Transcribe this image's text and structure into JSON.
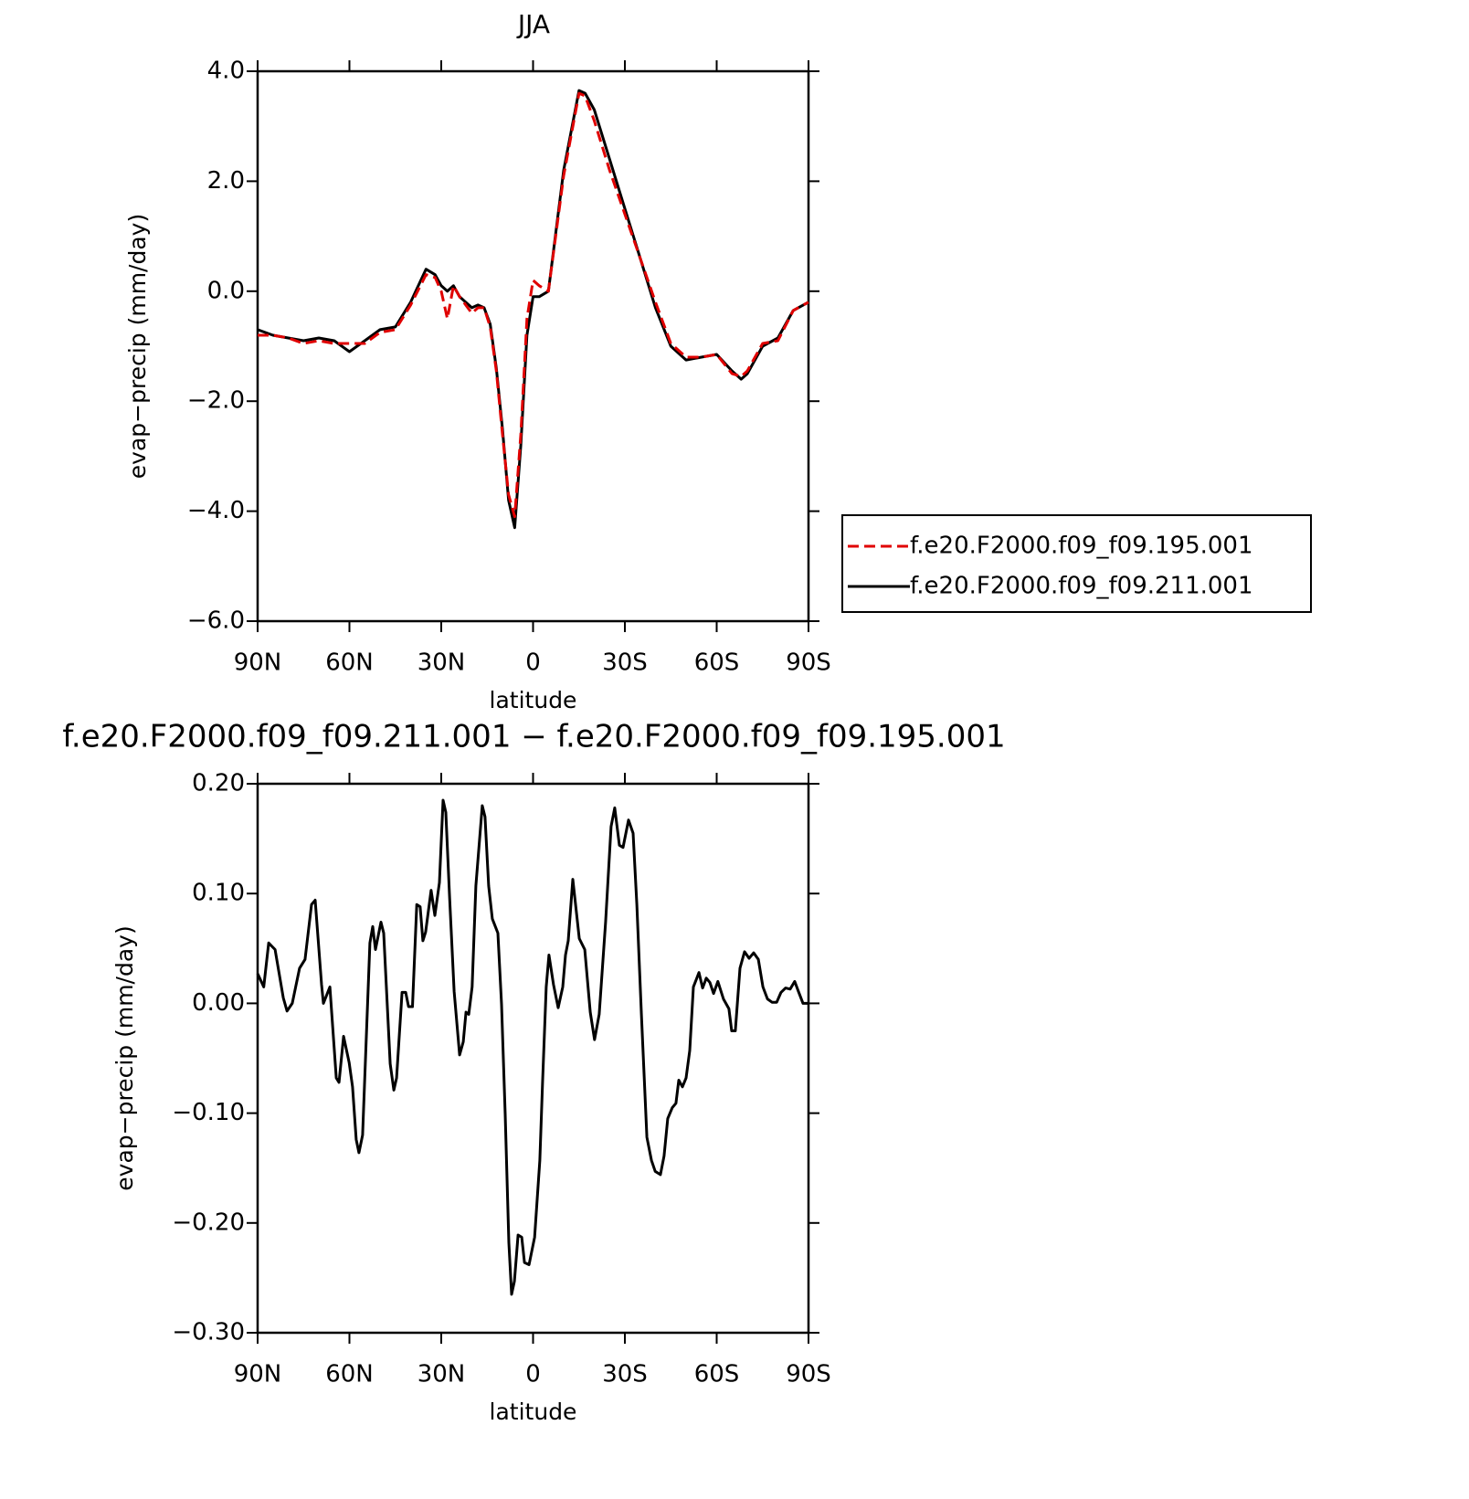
{
  "chart_data": [
    {
      "type": "line",
      "title": "JJA",
      "xlabel": "latitude",
      "ylabel": "evap−precip (mm/day)",
      "xlim": [
        90,
        -90
      ],
      "xticks": [
        {
          "value": 90,
          "label": "90N"
        },
        {
          "value": 60,
          "label": "60N"
        },
        {
          "value": 30,
          "label": "30N"
        },
        0,
        {
          "value": -30,
          "label": "30S"
        },
        {
          "value": -60,
          "label": "60S"
        },
        {
          "value": -90,
          "label": "90S"
        }
      ],
      "ylim": [
        -6,
        4
      ],
      "yticks": [
        {
          "value": -6,
          "label": "−6.0"
        },
        {
          "value": -4,
          "label": "−4.0"
        },
        {
          "value": -2,
          "label": "−2.0"
        },
        {
          "value": 0,
          "label": "0.0"
        },
        {
          "value": 2,
          "label": "2.0"
        },
        {
          "value": 4,
          "label": "4.0"
        }
      ],
      "legend": "right",
      "x": [
        90,
        85,
        80,
        75,
        70,
        65,
        60,
        55,
        50,
        45,
        40,
        35,
        32,
        30,
        28,
        26,
        24,
        20,
        18,
        16,
        14,
        12,
        10,
        8,
        6,
        4,
        2,
        0,
        -2,
        -5,
        -10,
        -15,
        -17,
        -20,
        -25,
        -30,
        -35,
        -40,
        -45,
        -50,
        -55,
        -60,
        -65,
        -68,
        -70,
        -75,
        -80,
        -85,
        -90
      ],
      "series": [
        {
          "name": "f.e20.F2000.f09_f09.195.001",
          "color": "#e00000",
          "style": "dashed",
          "values": [
            -0.8,
            -0.8,
            -0.85,
            -0.95,
            -0.9,
            -0.95,
            -0.95,
            -0.95,
            -0.75,
            -0.7,
            -0.25,
            0.3,
            0.25,
            0.0,
            -0.5,
            0.1,
            -0.1,
            -0.4,
            -0.3,
            -0.3,
            -0.65,
            -1.45,
            -2.6,
            -3.7,
            -4.1,
            -2.6,
            -0.5,
            0.2,
            0.1,
            0.0,
            2.1,
            3.6,
            3.55,
            3.1,
            2.2,
            1.4,
            0.6,
            -0.2,
            -0.95,
            -1.2,
            -1.2,
            -1.15,
            -1.5,
            -1.55,
            -1.45,
            -0.95,
            -0.9,
            -0.35,
            -0.2
          ]
        },
        {
          "name": "f.e20.F2000.f09_f09.211.001",
          "color": "#000000",
          "style": "solid",
          "values": [
            -0.7,
            -0.8,
            -0.85,
            -0.9,
            -0.85,
            -0.9,
            -1.1,
            -0.9,
            -0.7,
            -0.65,
            -0.2,
            0.4,
            0.3,
            0.1,
            0.0,
            0.1,
            -0.1,
            -0.3,
            -0.25,
            -0.3,
            -0.6,
            -1.4,
            -2.5,
            -3.8,
            -4.3,
            -2.8,
            -0.8,
            -0.1,
            -0.1,
            0.0,
            2.2,
            3.65,
            3.6,
            3.3,
            2.4,
            1.5,
            0.6,
            -0.3,
            -1.0,
            -1.25,
            -1.2,
            -1.15,
            -1.45,
            -1.6,
            -1.5,
            -1.0,
            -0.85,
            -0.35,
            -0.2
          ]
        }
      ]
    },
    {
      "type": "line",
      "title": "f.e20.F2000.f09_f09.211.001 − f.e20.F2000.f09_f09.195.001",
      "xlabel": "latitude",
      "ylabel": "evap−precip (mm/day)",
      "xlim": [
        90,
        -90
      ],
      "xticks": [
        {
          "value": 90,
          "label": "90N"
        },
        {
          "value": 60,
          "label": "60N"
        },
        {
          "value": 30,
          "label": "30N"
        },
        0,
        {
          "value": -30,
          "label": "30S"
        },
        {
          "value": -60,
          "label": "60S"
        },
        {
          "value": -90,
          "label": "90S"
        }
      ],
      "ylim": [
        -0.3,
        0.2
      ],
      "yticks": [
        {
          "value": -0.3,
          "label": "−0.30"
        },
        {
          "value": -0.2,
          "label": "−0.20"
        },
        {
          "value": -0.1,
          "label": "−0.10"
        },
        {
          "value": 0,
          "label": "0.00"
        },
        {
          "value": 0.1,
          "label": "0.10"
        },
        {
          "value": 0.2,
          "label": "0.20"
        }
      ],
      "color": "#000000",
      "x": [
        90,
        88,
        86.4,
        84.3,
        81.6,
        80.4,
        78.7,
        76.3,
        74.5,
        72.4,
        71.2,
        69.1,
        68.5,
        66.4,
        64.3,
        63.4,
        61.9,
        60.1,
        59,
        57.8,
        56.9,
        55.7,
        53.3,
        52.4,
        51.5,
        49.7,
        48.8,
        46.7,
        45.5,
        44.6,
        42.8,
        41.6,
        40.7,
        39.4,
        38,
        36.9,
        36,
        35.1,
        33.3,
        32.1,
        30.6,
        29.4,
        28.5,
        27.3,
        25.8,
        24,
        22.8,
        21.9,
        21,
        19.9,
        18.7,
        16.6,
        15.7,
        14.5,
        13.3,
        11.5,
        10.3,
        9.1,
        7.9,
        7,
        6.1,
        4.9,
        3.7,
        2.8,
        1.3,
        -0.5,
        -2.2,
        -3.1,
        -4.3,
        -5.2,
        -6.7,
        -8.2,
        -9.7,
        -10.6,
        -11.5,
        -13,
        -15.1,
        -16.9,
        -18.7,
        -20.1,
        -21.6,
        -23.7,
        -25.5,
        -26.7,
        -28.2,
        -29.4,
        -31.2,
        -32.7,
        -33.9,
        -35.4,
        -37.2,
        -38.7,
        -39.9,
        -41.6,
        -42.8,
        -44,
        -45.5,
        -46.7,
        -47.6,
        -48.8,
        -50,
        -51.2,
        -52.4,
        -54.2,
        -55.4,
        -56.6,
        -57.8,
        -59,
        -60.4,
        -62.2,
        -64,
        -64.9,
        -66.1,
        -67.6,
        -69.1,
        -70.6,
        -72.1,
        -73.6,
        -75.1,
        -76.6,
        -78.1,
        -79.6,
        -81,
        -82.5,
        -84,
        -85.5,
        -86.7,
        -88.2,
        -89.7
      ],
      "values": [
        0.027,
        0.015,
        0.055,
        0.049,
        0.005,
        -0.007,
        0.0,
        0.032,
        0.04,
        0.09,
        0.094,
        0.017,
        0.0,
        0.015,
        -0.068,
        -0.072,
        -0.03,
        -0.054,
        -0.076,
        -0.124,
        -0.136,
        -0.12,
        0.055,
        0.07,
        0.049,
        0.074,
        0.064,
        -0.055,
        -0.079,
        -0.068,
        0.01,
        0.01,
        -0.003,
        -0.003,
        0.09,
        0.088,
        0.057,
        0.065,
        0.103,
        0.08,
        0.11,
        0.185,
        0.174,
        0.099,
        0.011,
        -0.047,
        -0.035,
        -0.008,
        -0.01,
        0.015,
        0.107,
        0.18,
        0.17,
        0.107,
        0.077,
        0.064,
        -0.001,
        -0.101,
        -0.218,
        -0.265,
        -0.253,
        -0.211,
        -0.213,
        -0.236,
        -0.238,
        -0.213,
        -0.143,
        -0.072,
        0.015,
        0.044,
        0.017,
        -0.004,
        0.015,
        0.044,
        0.057,
        0.113,
        0.059,
        0.049,
        -0.008,
        -0.033,
        -0.01,
        0.074,
        0.161,
        0.178,
        0.144,
        0.142,
        0.167,
        0.155,
        0.09,
        -0.01,
        -0.122,
        -0.143,
        -0.153,
        -0.156,
        -0.139,
        -0.105,
        -0.095,
        -0.091,
        -0.07,
        -0.076,
        -0.068,
        -0.043,
        0.015,
        0.028,
        0.014,
        0.023,
        0.019,
        0.009,
        0.02,
        0.004,
        -0.005,
        -0.025,
        -0.025,
        0.032,
        0.047,
        0.041,
        0.046,
        0.04,
        0.015,
        0.004,
        0.001,
        0.001,
        0.01,
        0.014,
        0.013,
        0.02,
        0.011,
        0,
        0
      ]
    }
  ]
}
